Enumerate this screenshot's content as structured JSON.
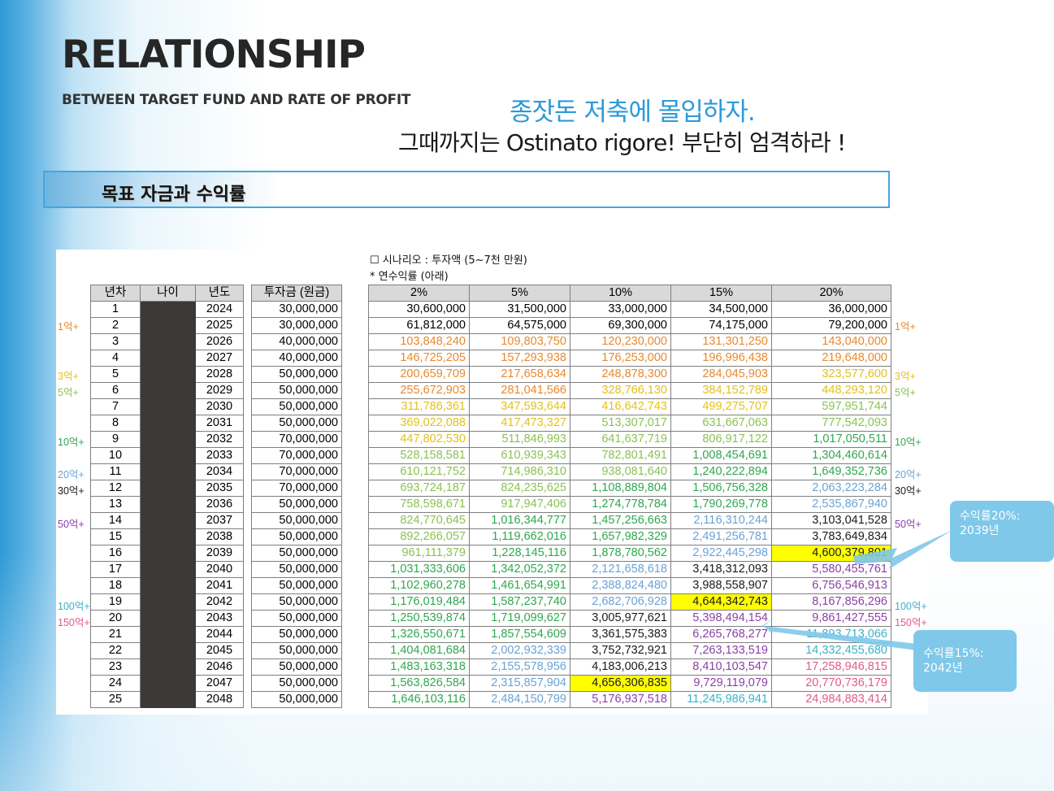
{
  "header": {
    "title": "RELATIONSHIP",
    "subtitle": "BETWEEN TARGET FUND AND RATE OF PROFIT",
    "slogan_line1": "종잣돈 저축에 몰입하자.",
    "slogan_line2": "그때까지는 Ostinato rigore!  부단히 엄격하라 !"
  },
  "section": {
    "label": "목표 자금과 수익률"
  },
  "notes": {
    "scenario": "☐ 시나리오 : 투자액 (5~7천 만원)",
    "rate_note": "* 연수익률 (아래)"
  },
  "table_left": {
    "headers": [
      "년차",
      "나이",
      "년도"
    ],
    "rows": [
      [
        "1",
        "2024"
      ],
      [
        "2",
        "2025"
      ],
      [
        "3",
        "2026"
      ],
      [
        "4",
        "2027"
      ],
      [
        "5",
        "2028"
      ],
      [
        "6",
        "2029"
      ],
      [
        "7",
        "2030"
      ],
      [
        "8",
        "2031"
      ],
      [
        "9",
        "2032"
      ],
      [
        "10",
        "2033"
      ],
      [
        "11",
        "2034"
      ],
      [
        "12",
        "2035"
      ],
      [
        "13",
        "2036"
      ],
      [
        "14",
        "2037"
      ],
      [
        "15",
        "2038"
      ],
      [
        "16",
        "2039"
      ],
      [
        "17",
        "2040"
      ],
      [
        "18",
        "2041"
      ],
      [
        "19",
        "2042"
      ],
      [
        "20",
        "2043"
      ],
      [
        "21",
        "2044"
      ],
      [
        "22",
        "2045"
      ],
      [
        "23",
        "2046"
      ],
      [
        "24",
        "2047"
      ],
      [
        "25",
        "2048"
      ]
    ]
  },
  "table_principal": {
    "header": "투자금 (원금)",
    "values": [
      "30,000,000",
      "30,000,000",
      "40,000,000",
      "40,000,000",
      "50,000,000",
      "50,000,000",
      "50,000,000",
      "50,000,000",
      "70,000,000",
      "70,000,000",
      "70,000,000",
      "70,000,000",
      "50,000,000",
      "50,000,000",
      "50,000,000",
      "50,000,000",
      "50,000,000",
      "50,000,000",
      "50,000,000",
      "50,000,000",
      "50,000,000",
      "50,000,000",
      "50,000,000",
      "50,000,000",
      "50,000,000"
    ]
  },
  "table_rates": {
    "headers": [
      "2%",
      "5%",
      "10%",
      "15%",
      "20%"
    ],
    "rows": [
      [
        "30,600,000",
        "31,500,000",
        "33,000,000",
        "34,500,000",
        "36,000,000"
      ],
      [
        "61,812,000",
        "64,575,000",
        "69,300,000",
        "74,175,000",
        "79,200,000"
      ],
      [
        "103,848,240",
        "109,803,750",
        "120,230,000",
        "131,301,250",
        "143,040,000"
      ],
      [
        "146,725,205",
        "157,293,938",
        "176,253,000",
        "196,996,438",
        "219,648,000"
      ],
      [
        "200,659,709",
        "217,658,634",
        "248,878,300",
        "284,045,903",
        "323,577,600"
      ],
      [
        "255,672,903",
        "281,041,566",
        "328,766,130",
        "384,152,789",
        "448,293,120"
      ],
      [
        "311,786,361",
        "347,593,644",
        "416,642,743",
        "499,275,707",
        "597,951,744"
      ],
      [
        "369,022,088",
        "417,473,327",
        "513,307,017",
        "631,667,063",
        "777,542,093"
      ],
      [
        "447,802,530",
        "511,846,993",
        "641,637,719",
        "806,917,122",
        "1,017,050,511"
      ],
      [
        "528,158,581",
        "610,939,343",
        "782,801,491",
        "1,008,454,691",
        "1,304,460,614"
      ],
      [
        "610,121,752",
        "714,986,310",
        "938,081,640",
        "1,240,222,894",
        "1,649,352,736"
      ],
      [
        "693,724,187",
        "824,235,625",
        "1,108,889,804",
        "1,506,756,328",
        "2,063,223,284"
      ],
      [
        "758,598,671",
        "917,947,406",
        "1,274,778,784",
        "1,790,269,778",
        "2,535,867,940"
      ],
      [
        "824,770,645",
        "1,016,344,777",
        "1,457,256,663",
        "2,116,310,244",
        "3,103,041,528"
      ],
      [
        "892,266,057",
        "1,119,662,016",
        "1,657,982,329",
        "2,491,256,781",
        "3,783,649,834"
      ],
      [
        "961,111,379",
        "1,228,145,116",
        "1,878,780,562",
        "2,922,445,298",
        "4,600,379,801"
      ],
      [
        "1,031,333,606",
        "1,342,052,372",
        "2,121,658,618",
        "3,418,312,093",
        "5,580,455,761"
      ],
      [
        "1,102,960,278",
        "1,461,654,991",
        "2,388,824,480",
        "3,988,558,907",
        "6,756,546,913"
      ],
      [
        "1,176,019,484",
        "1,587,237,740",
        "2,682,706,928",
        "4,644,342,743",
        "8,167,856,296"
      ],
      [
        "1,250,539,874",
        "1,719,099,627",
        "3,005,977,621",
        "5,398,494,154",
        "9,861,427,555"
      ],
      [
        "1,326,550,671",
        "1,857,554,609",
        "3,361,575,383",
        "6,265,768,277",
        "11,893,713,066"
      ],
      [
        "1,404,081,684",
        "2,002,932,339",
        "3,752,732,921",
        "7,263,133,519",
        "14,332,455,680"
      ],
      [
        "1,483,163,318",
        "2,155,578,956",
        "4,183,006,213",
        "8,410,103,547",
        "17,258,946,815"
      ],
      [
        "1,563,826,584",
        "2,315,857,904",
        "4,656,306,835",
        "9,729,119,079",
        "20,770,736,179"
      ],
      [
        "1,646,103,116",
        "2,484,150,799",
        "5,176,937,518",
        "11,245,986,941",
        "24,984,883,414"
      ]
    ]
  },
  "threshold_labels_left": [
    {
      "row": 2,
      "text": "1억+",
      "color": "#e8892e"
    },
    {
      "row": 5,
      "text": "3억+",
      "color": "#e3c11c"
    },
    {
      "row": 6,
      "text": "5억+",
      "color": "#8cc152"
    },
    {
      "row": 9,
      "text": "10억+",
      "color": "#2ea84f"
    },
    {
      "row": 11,
      "text": "20억+",
      "color": "#6aa3d5"
    },
    {
      "row": 12,
      "text": "30억+",
      "color": "#1a1a1a"
    },
    {
      "row": 14,
      "text": "50억+",
      "color": "#8c3fa8"
    },
    {
      "row": 19,
      "text": "100억+",
      "color": "#39b3c9"
    },
    {
      "row": 20,
      "text": "150억+",
      "color": "#e05a8c"
    }
  ],
  "threshold_labels_right": [
    {
      "row": 2,
      "text": "1억+",
      "color": "#e8892e"
    },
    {
      "row": 5,
      "text": "3억+",
      "color": "#e3c11c"
    },
    {
      "row": 6,
      "text": "5억+",
      "color": "#8cc152"
    },
    {
      "row": 9,
      "text": "10억+",
      "color": "#2ea84f"
    },
    {
      "row": 11,
      "text": "20억+",
      "color": "#6aa3d5"
    },
    {
      "row": 12,
      "text": "30억+",
      "color": "#1a1a1a"
    },
    {
      "row": 14,
      "text": "50억+",
      "color": "#8c3fa8"
    },
    {
      "row": 19,
      "text": "100억+",
      "color": "#39b3c9"
    },
    {
      "row": 20,
      "text": "150억+",
      "color": "#e05a8c"
    }
  ],
  "tier_colors": {
    "under_1": "#000000",
    "1": "#e8892e",
    "3": "#e3c11c",
    "5": "#8cc152",
    "10": "#2ea84f",
    "20": "#6aa3d5",
    "30": "#1a1a1a",
    "50": "#8c3fa8",
    "100": "#39b3c9",
    "150": "#e05a8c"
  },
  "highlights": [
    {
      "row": 16,
      "col": 4,
      "color": "#ffff00"
    },
    {
      "row": 19,
      "col": 3,
      "color": "#ffff00"
    },
    {
      "row": 24,
      "col": 2,
      "color": "#ffff00"
    }
  ],
  "callouts": [
    {
      "text_line1": "수익률20%:",
      "text_line2": "2039년"
    },
    {
      "text_line1": "수익률15%:",
      "text_line2": "2042년"
    }
  ]
}
